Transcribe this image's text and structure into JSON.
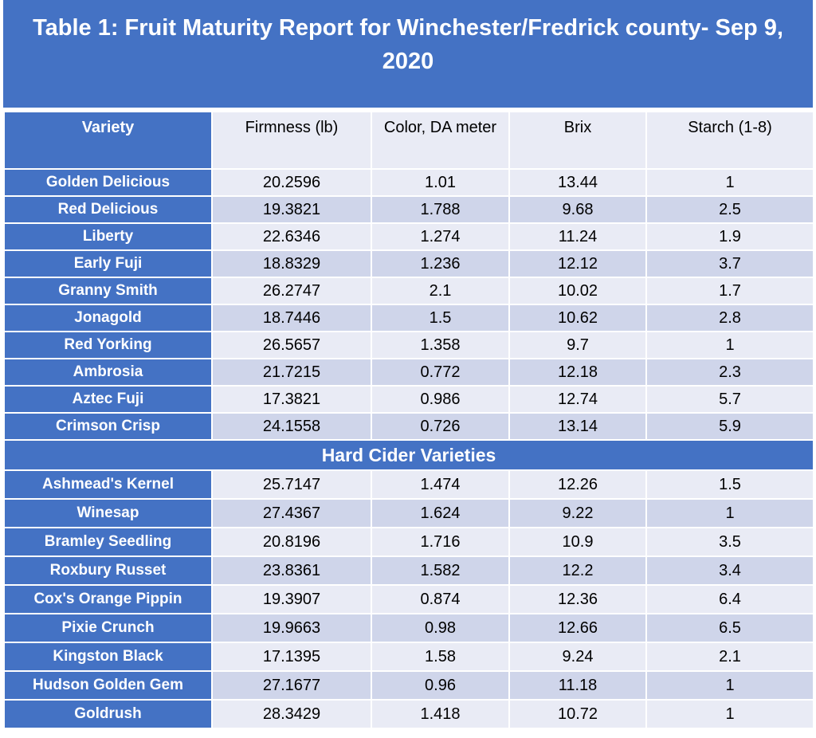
{
  "title": "Table 1: Fruit Maturity Report for Winchester/Fredrick county- Sep 9, 2020",
  "table": {
    "header": [
      "Variety",
      "Firmness (lb)",
      "Color, DA meter",
      "Brix",
      "Starch (1-8)"
    ],
    "rows": [
      [
        "Golden Delicious",
        "20.2596",
        "1.01",
        "13.44",
        "1"
      ],
      [
        "Red Delicious",
        "19.3821",
        "1.788",
        "9.68",
        "2.5"
      ],
      [
        "Liberty",
        "22.6346",
        "1.274",
        "11.24",
        "1.9"
      ],
      [
        "Early Fuji",
        "18.8329",
        "1.236",
        "12.12",
        "3.7"
      ],
      [
        "Granny Smith",
        "26.2747",
        "2.1",
        "10.02",
        "1.7"
      ],
      [
        "Jonagold",
        "18.7446",
        "1.5",
        "10.62",
        "2.8"
      ],
      [
        "Red Yorking",
        "26.5657",
        "1.358",
        "9.7",
        "1"
      ],
      [
        "Ambrosia",
        "21.7215",
        "0.772",
        "12.18",
        "2.3"
      ],
      [
        "Aztec Fuji",
        "17.3821",
        "0.986",
        "12.74",
        "5.7"
      ],
      [
        "Crimson Crisp",
        "24.1558",
        "0.726",
        "13.14",
        "5.9"
      ]
    ]
  },
  "section": {
    "title": "Hard Cider Varieties",
    "rows": [
      [
        "Ashmead's Kernel",
        "25.7147",
        "1.474",
        "12.26",
        "1.5"
      ],
      [
        "Winesap",
        "27.4367",
        "1.624",
        "9.22",
        "1"
      ],
      [
        "Bramley Seedling",
        "20.8196",
        "1.716",
        "10.9",
        "3.5"
      ],
      [
        "Roxbury Russet",
        "23.8361",
        "1.582",
        "12.2",
        "3.4"
      ],
      [
        "Cox's Orange Pippin",
        "19.3907",
        "0.874",
        "12.36",
        "6.4"
      ],
      [
        "Pixie Crunch",
        "19.9663",
        "0.98",
        "12.66",
        "6.5"
      ],
      [
        "Kingston Black",
        "17.1395",
        "1.58",
        "9.24",
        "2.1"
      ],
      [
        "Hudson Golden Gem",
        "27.1677",
        "0.96",
        "11.18",
        "1"
      ],
      [
        "Goldrush",
        "28.3429",
        "1.418",
        "10.72",
        "1"
      ]
    ]
  }
}
